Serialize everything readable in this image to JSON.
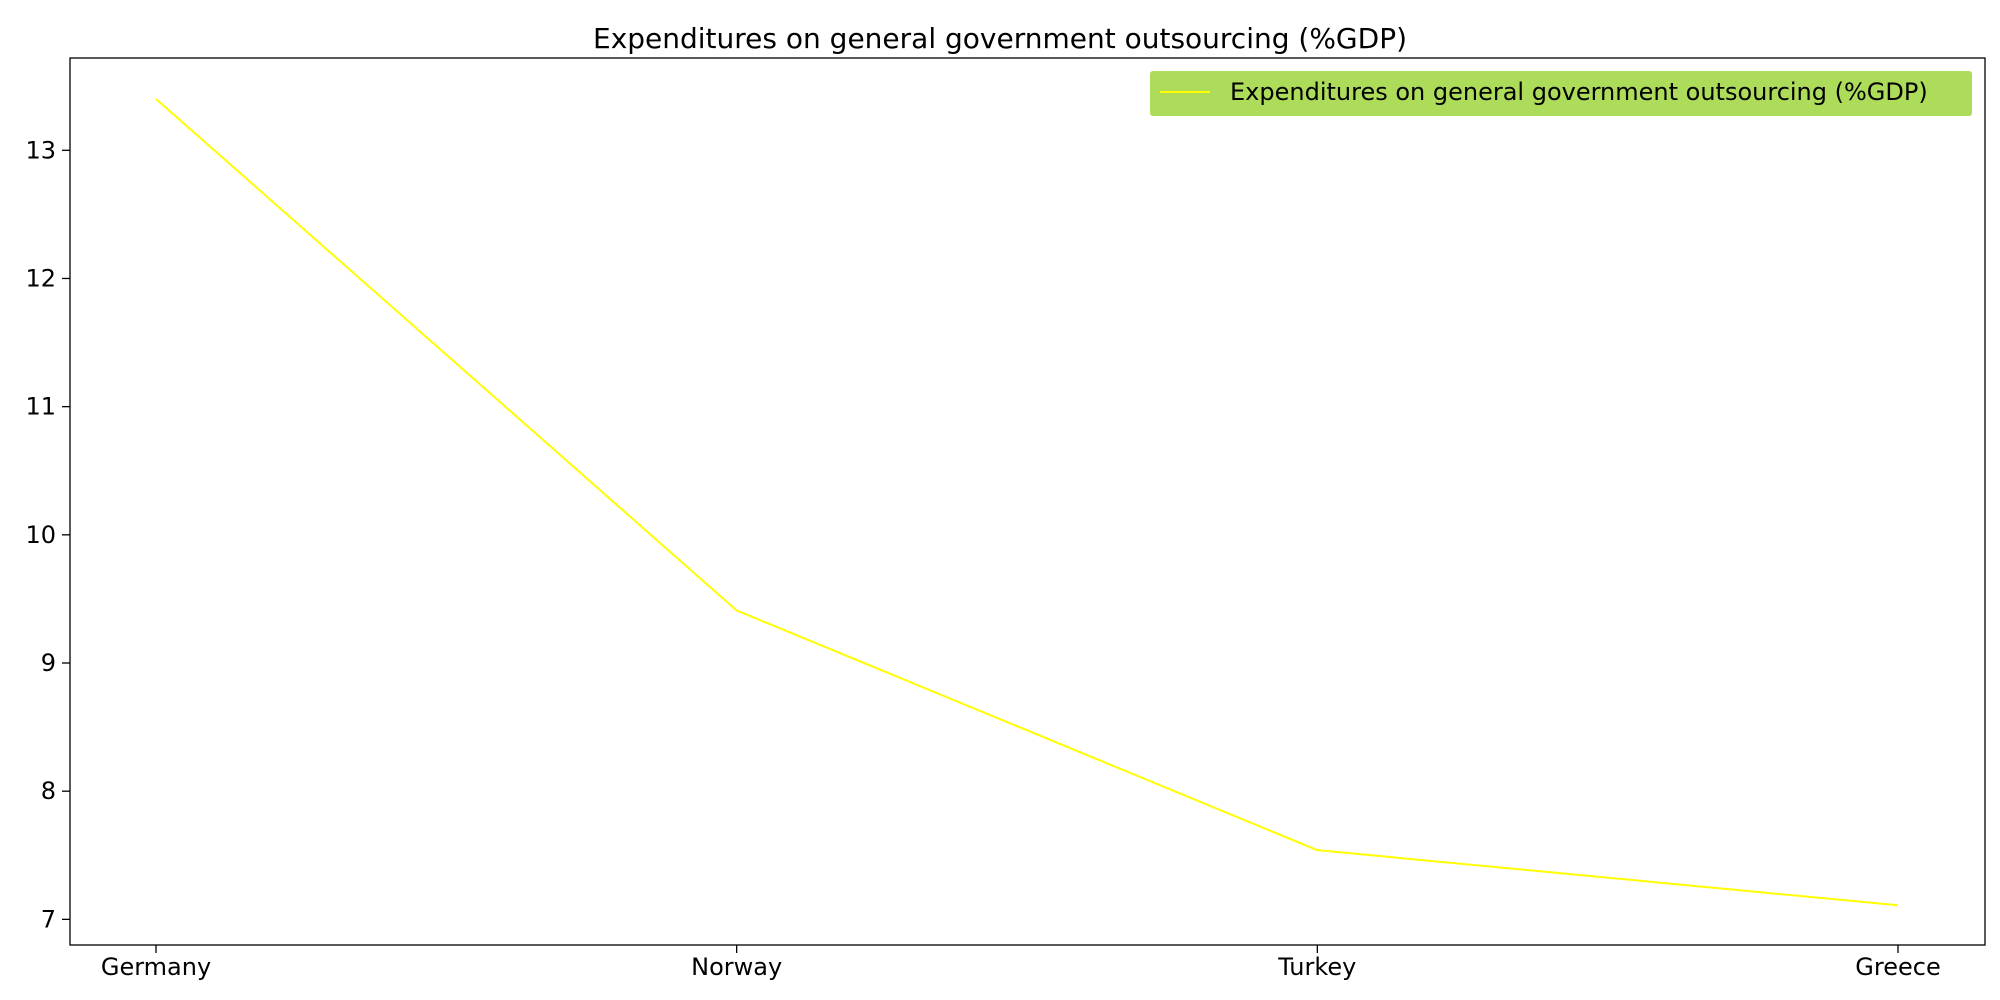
{
  "chart_data": {
    "type": "line",
    "title": "Expenditures on general government outsourcing (%GDP)",
    "xlabel": "",
    "ylabel": "",
    "categories": [
      "Germany",
      "Norway",
      "Turkey",
      "Greece"
    ],
    "series": [
      {
        "name": "Expenditures on general government outsourcing (%GDP)",
        "values": [
          13.4,
          9.41,
          7.54,
          7.11
        ],
        "color": "#ffff00"
      }
    ],
    "ylim": [
      6.8,
      13.72
    ],
    "yticks": [
      7,
      8,
      9,
      10,
      11,
      12,
      13
    ],
    "grid": false,
    "legend": {
      "placement": "top-right",
      "background": "#addc5a"
    }
  }
}
